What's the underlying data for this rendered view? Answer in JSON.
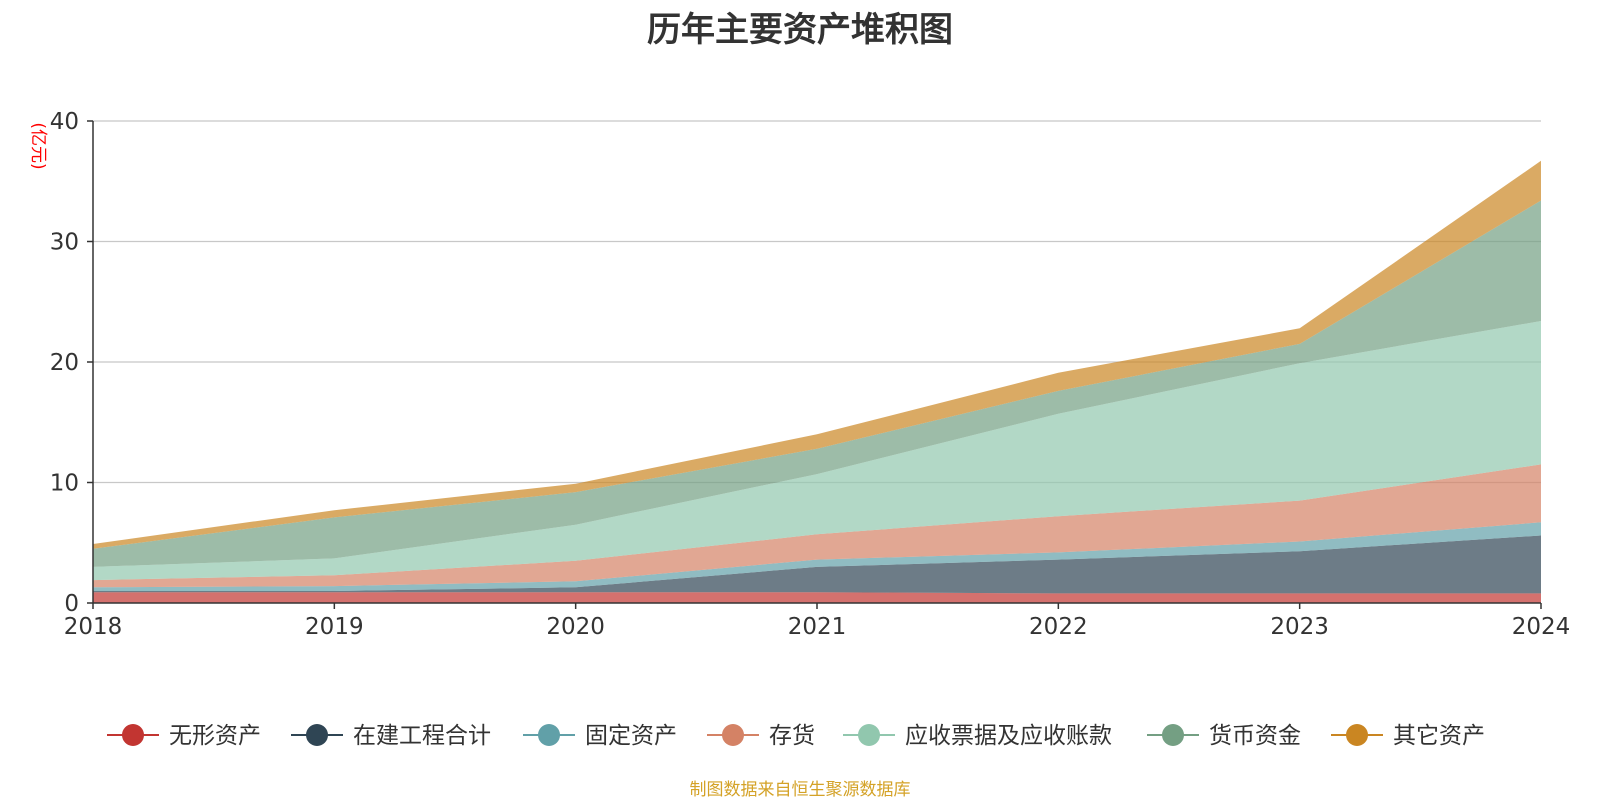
{
  "chart_data": {
    "type": "area",
    "stacked": true,
    "title": "历年主要资产堆积图",
    "ylabel": "(亿元)",
    "xlabel": "",
    "x": [
      "2018",
      "2019",
      "2020",
      "2021",
      "2022",
      "2023",
      "2024"
    ],
    "ylim": [
      0,
      40
    ],
    "yticks": [
      0,
      10,
      20,
      30,
      40
    ],
    "grid": true,
    "legend_position": "bottom",
    "series": [
      {
        "name": "无形资产",
        "color": "#c23531",
        "values": [
          0.9,
          0.9,
          0.9,
          0.9,
          0.8,
          0.8,
          0.8
        ]
      },
      {
        "name": "在建工程合计",
        "color": "#2f4554",
        "values": [
          0.1,
          0.1,
          0.4,
          2.1,
          2.8,
          3.5,
          4.8
        ]
      },
      {
        "name": "固定资产",
        "color": "#61a0a8",
        "values": [
          0.3,
          0.4,
          0.5,
          0.6,
          0.6,
          0.8,
          1.1
        ]
      },
      {
        "name": "存货",
        "color": "#d48265",
        "values": [
          0.6,
          0.9,
          1.7,
          2.1,
          3.0,
          3.4,
          4.8
        ]
      },
      {
        "name": "应收票据及应收账款",
        "color": "#91c7ae",
        "values": [
          1.1,
          1.4,
          3.0,
          5.0,
          8.5,
          11.4,
          11.9
        ]
      },
      {
        "name": "货币资金",
        "color": "#749f83",
        "values": [
          1.5,
          3.4,
          2.7,
          2.1,
          1.9,
          1.6,
          10.0
        ]
      },
      {
        "name": "其它资产",
        "color": "#ca8622",
        "values": [
          0.4,
          0.6,
          0.7,
          1.2,
          1.5,
          1.3,
          3.3
        ]
      }
    ],
    "source_note": "制图数据来自恒生聚源数据库",
    "unit_color": "#ff0000",
    "source_color": "#d4a227"
  }
}
